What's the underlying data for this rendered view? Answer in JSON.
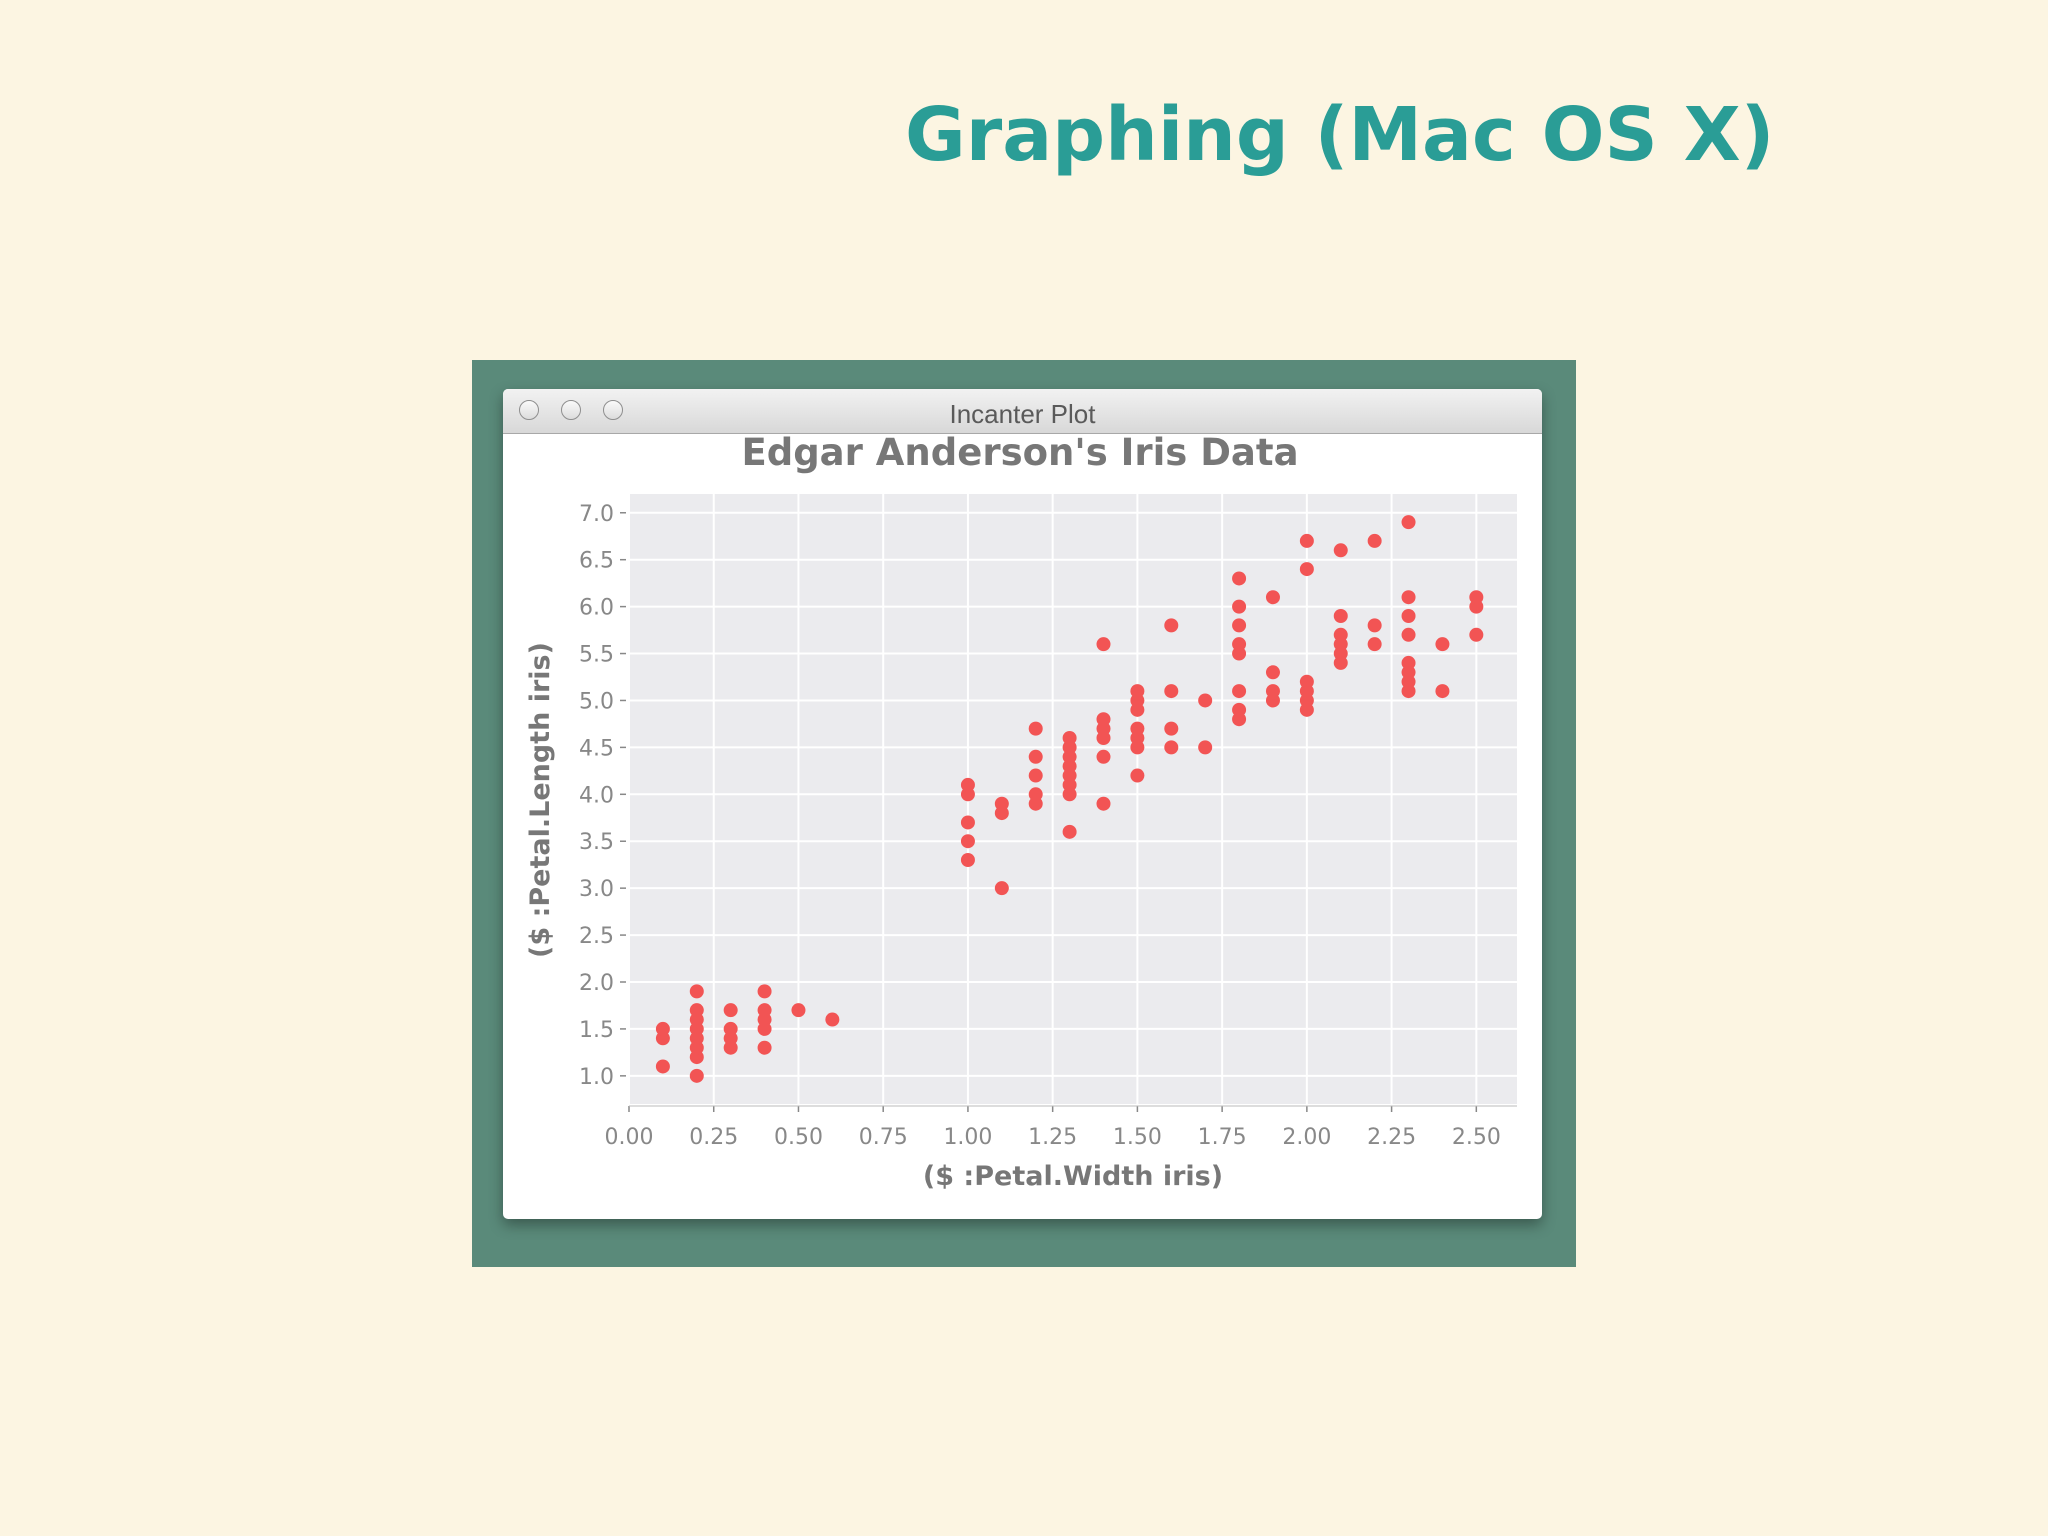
{
  "slide": {
    "title": "Graphing (Mac OS X)"
  },
  "window": {
    "title": "Incanter Plot"
  },
  "colors": {
    "point": "#f25454",
    "plot_bg": "#ebebee",
    "grid": "#ffffff",
    "title_text": "#777777",
    "frame": "#5a8a7a"
  },
  "chart_data": {
    "type": "scatter",
    "title": "Edgar Anderson's Iris Data",
    "xlabel": "($ :Petal.Width iris)",
    "ylabel": "($ :Petal.Length iris)",
    "xlim": [
      0,
      2.62
    ],
    "ylim": [
      0.7,
      7.2
    ],
    "x_ticks": [
      "0.00",
      "0.25",
      "0.50",
      "0.75",
      "1.00",
      "1.25",
      "1.50",
      "1.75",
      "2.00",
      "2.25",
      "2.50"
    ],
    "y_ticks": [
      "1.0",
      "1.5",
      "2.0",
      "2.5",
      "3.0",
      "3.5",
      "4.0",
      "4.5",
      "5.0",
      "5.5",
      "6.0",
      "6.5",
      "7.0"
    ],
    "grid": true,
    "points": [
      [
        0.1,
        1.1
      ],
      [
        0.1,
        1.4
      ],
      [
        0.1,
        1.5
      ],
      [
        0.2,
        1.0
      ],
      [
        0.2,
        1.2
      ],
      [
        0.2,
        1.3
      ],
      [
        0.2,
        1.4
      ],
      [
        0.2,
        1.5
      ],
      [
        0.2,
        1.6
      ],
      [
        0.2,
        1.7
      ],
      [
        0.2,
        1.9
      ],
      [
        0.3,
        1.3
      ],
      [
        0.3,
        1.4
      ],
      [
        0.3,
        1.5
      ],
      [
        0.3,
        1.7
      ],
      [
        0.4,
        1.3
      ],
      [
        0.4,
        1.5
      ],
      [
        0.4,
        1.6
      ],
      [
        0.4,
        1.7
      ],
      [
        0.4,
        1.9
      ],
      [
        0.5,
        1.7
      ],
      [
        0.6,
        1.6
      ],
      [
        1.0,
        3.3
      ],
      [
        1.0,
        3.5
      ],
      [
        1.0,
        3.7
      ],
      [
        1.0,
        4.0
      ],
      [
        1.0,
        4.1
      ],
      [
        1.1,
        3.0
      ],
      [
        1.1,
        3.8
      ],
      [
        1.1,
        3.9
      ],
      [
        1.2,
        3.9
      ],
      [
        1.2,
        4.0
      ],
      [
        1.2,
        4.2
      ],
      [
        1.2,
        4.4
      ],
      [
        1.2,
        4.7
      ],
      [
        1.3,
        3.6
      ],
      [
        1.3,
        4.0
      ],
      [
        1.3,
        4.1
      ],
      [
        1.3,
        4.2
      ],
      [
        1.3,
        4.3
      ],
      [
        1.3,
        4.4
      ],
      [
        1.3,
        4.5
      ],
      [
        1.3,
        4.6
      ],
      [
        1.4,
        3.9
      ],
      [
        1.4,
        4.4
      ],
      [
        1.4,
        4.6
      ],
      [
        1.4,
        4.7
      ],
      [
        1.4,
        4.8
      ],
      [
        1.4,
        5.6
      ],
      [
        1.5,
        4.2
      ],
      [
        1.5,
        4.5
      ],
      [
        1.5,
        4.6
      ],
      [
        1.5,
        4.7
      ],
      [
        1.5,
        4.9
      ],
      [
        1.5,
        5.0
      ],
      [
        1.5,
        5.1
      ],
      [
        1.6,
        4.5
      ],
      [
        1.6,
        4.7
      ],
      [
        1.6,
        5.1
      ],
      [
        1.6,
        5.8
      ],
      [
        1.7,
        4.5
      ],
      [
        1.7,
        5.0
      ],
      [
        1.8,
        4.8
      ],
      [
        1.8,
        4.9
      ],
      [
        1.8,
        5.1
      ],
      [
        1.8,
        5.5
      ],
      [
        1.8,
        5.6
      ],
      [
        1.8,
        5.8
      ],
      [
        1.8,
        6.0
      ],
      [
        1.8,
        6.3
      ],
      [
        1.9,
        5.0
      ],
      [
        1.9,
        5.1
      ],
      [
        1.9,
        5.3
      ],
      [
        1.9,
        6.1
      ],
      [
        2.0,
        4.9
      ],
      [
        2.0,
        5.0
      ],
      [
        2.0,
        5.1
      ],
      [
        2.0,
        5.2
      ],
      [
        2.0,
        6.4
      ],
      [
        2.0,
        6.7
      ],
      [
        2.1,
        5.4
      ],
      [
        2.1,
        5.5
      ],
      [
        2.1,
        5.6
      ],
      [
        2.1,
        5.7
      ],
      [
        2.1,
        5.9
      ],
      [
        2.1,
        6.6
      ],
      [
        2.2,
        5.6
      ],
      [
        2.2,
        5.8
      ],
      [
        2.2,
        6.7
      ],
      [
        2.3,
        5.1
      ],
      [
        2.3,
        5.2
      ],
      [
        2.3,
        5.3
      ],
      [
        2.3,
        5.4
      ],
      [
        2.3,
        5.7
      ],
      [
        2.3,
        5.9
      ],
      [
        2.3,
        6.1
      ],
      [
        2.3,
        6.9
      ],
      [
        2.4,
        5.1
      ],
      [
        2.4,
        5.6
      ],
      [
        2.5,
        5.7
      ],
      [
        2.5,
        6.0
      ],
      [
        2.5,
        6.1
      ]
    ]
  }
}
